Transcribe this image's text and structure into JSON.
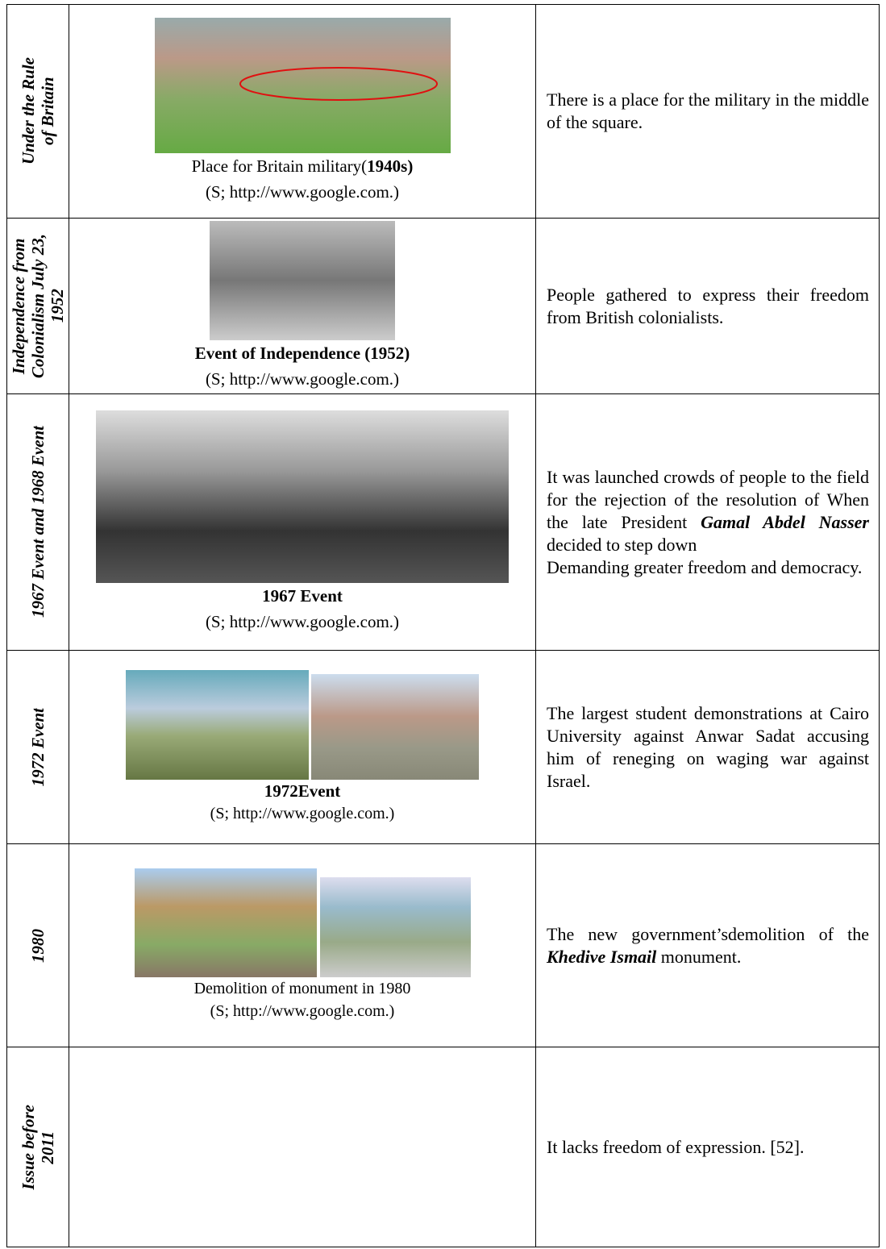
{
  "rows": [
    {
      "period": [
        "Under the Rule",
        "of Britain"
      ],
      "caption": [
        "Place for Britain military(",
        "1940s)"
      ],
      "source": "(S; http://www.google.com.)",
      "description": [
        "There is a place for the military in the middle of the square."
      ]
    },
    {
      "period": [
        "Independence from",
        "Colonialism July 23,",
        "1952"
      ],
      "caption": [
        "Event of Independence (1952)"
      ],
      "source": "(S; http://www.google.com.)",
      "description": [
        "People gathered to express their freedom from British colonialists."
      ]
    },
    {
      "period": [
        "1967 Event and 1968 Event"
      ],
      "caption": [
        "1967 Event"
      ],
      "source": "(S; http://www.google.com.)",
      "description": [
        "It was launched crowds of people to the field for the rejection of the resolution of When the late President ",
        "Gamal Abdel Nasser",
        " decided to step down",
        "Demanding greater freedom and democracy."
      ]
    },
    {
      "period": [
        "1972 Event"
      ],
      "caption": [
        "1972Event"
      ],
      "source": "(S; http://www.google.com.)",
      "description": [
        "The largest student demonstrations at Cairo University against Anwar Sadat accusing him of reneging on waging war against Israel."
      ]
    },
    {
      "period": [
        "1980"
      ],
      "caption": [
        "Demolition of monument in 1980"
      ],
      "source": "(S; http://www.google.com.)",
      "description": [
        "The new government’sdemolition of the ",
        "Khedive Ismail",
        " monument."
      ]
    },
    {
      "period": [
        "Issue before",
        "2011"
      ],
      "description": [
        "It lacks freedom of expression. [52]."
      ]
    }
  ]
}
